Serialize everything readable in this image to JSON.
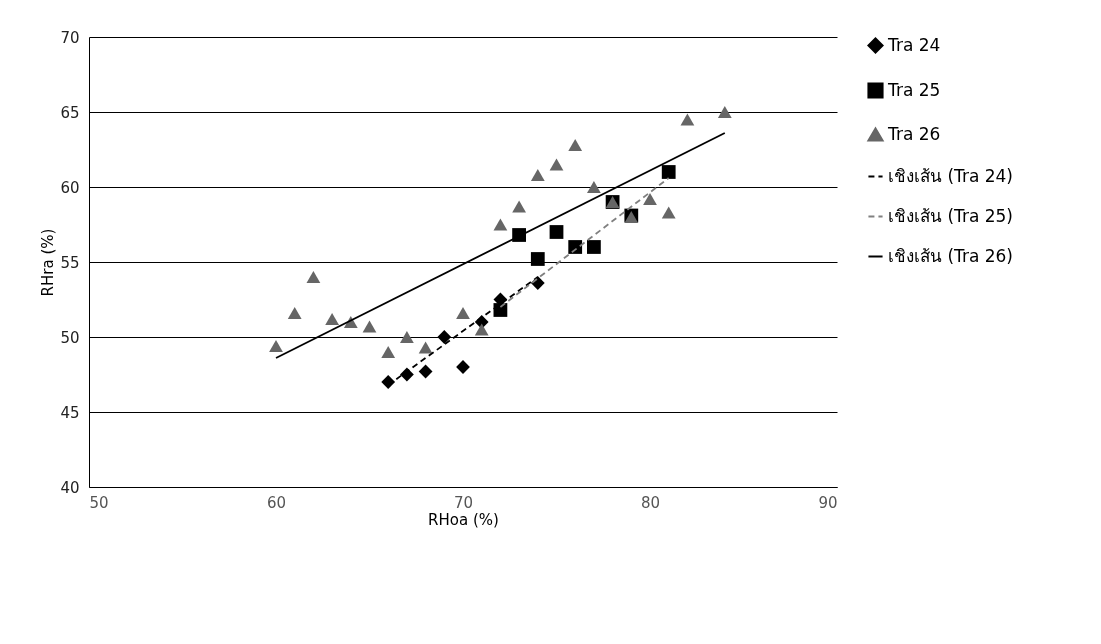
{
  "chart_data": {
    "type": "scatter",
    "xlabel": "RHoa (%)",
    "ylabel": "RHra (%)",
    "xlim": [
      50,
      90
    ],
    "xticks": [
      50,
      60,
      70,
      80,
      90
    ],
    "ylim": [
      40,
      70
    ],
    "yticks": [
      40,
      45,
      50,
      55,
      60,
      65,
      70
    ],
    "grid": "y",
    "legend": "right",
    "series": [
      {
        "name": "Tra 24",
        "type": "scatter",
        "marker": "diamond",
        "color": "#000000",
        "x": [
          66,
          67,
          68,
          69,
          70,
          71,
          72,
          74
        ],
        "values": [
          47,
          47.5,
          47.7,
          50,
          48,
          51,
          52.5,
          53.6
        ]
      },
      {
        "name": "Tra 25",
        "type": "scatter",
        "marker": "square",
        "color": "#000000",
        "x": [
          72,
          73,
          74,
          75,
          76,
          77,
          78,
          79,
          81
        ],
        "values": [
          51.8,
          56.8,
          55.2,
          57,
          56,
          56,
          59,
          58.1,
          61
        ]
      },
      {
        "name": "Tra 26",
        "type": "scatter",
        "marker": "triangle",
        "color": "#666666",
        "x": [
          60,
          61,
          62,
          63,
          64,
          65,
          66,
          67,
          68,
          70,
          71,
          72,
          73,
          74,
          75,
          76,
          77,
          78,
          79,
          80,
          81,
          82,
          84
        ],
        "values": [
          49.4,
          51.6,
          54,
          51.2,
          51,
          50.7,
          49,
          50,
          49.3,
          51.6,
          50.5,
          57.5,
          58.7,
          60.8,
          61.5,
          62.8,
          60,
          59,
          58,
          59.2,
          58.3,
          64.5,
          65
        ]
      },
      {
        "name": "เชิงเส้น (Tra 24)",
        "type": "line",
        "line_style": "dashed",
        "color": "#000000",
        "x": [
          66,
          74
        ],
        "values": [
          46.8,
          54
        ]
      },
      {
        "name": "เชิงเส้น (Tra 25)",
        "type": "line",
        "line_style": "dashed",
        "color": "#808080",
        "x": [
          72,
          81
        ],
        "values": [
          52,
          60.6
        ]
      },
      {
        "name": "เชิงเส้น (Tra 26)",
        "type": "line",
        "line_style": "solid",
        "color": "#000000",
        "x": [
          60,
          84
        ],
        "values": [
          48.6,
          63.6
        ]
      }
    ]
  }
}
